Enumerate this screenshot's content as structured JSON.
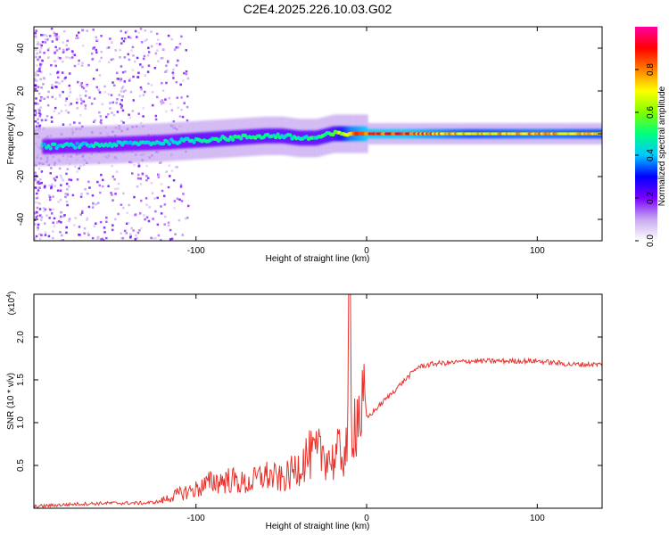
{
  "figure": {
    "title": "C2E4.2025.226.10.03.G02"
  },
  "chart_data": [
    {
      "type": "heatmap",
      "title": "C2E4.2025.226.10.03.G02",
      "xlabel": "Height of straight line (km)",
      "ylabel": "Frequency (Hz)",
      "xlim": [
        -195,
        138
      ],
      "ylim": [
        -50,
        50
      ],
      "xticks": [
        -100,
        0,
        100
      ],
      "yticks": [
        -40,
        -20,
        0,
        20,
        40
      ],
      "xtick_labels": [
        "-100",
        "0",
        "100"
      ],
      "ytick_labels": [
        "-40",
        "-20",
        "0",
        "20",
        "40"
      ],
      "grid": false,
      "colorbar": {
        "label": "Normalized spectral amplitude",
        "range": [
          0,
          1
        ],
        "ticks": [
          0.0,
          0.2,
          0.4,
          0.6,
          0.8
        ],
        "tick_labels": [
          "0.0",
          "0.2",
          "0.4",
          "0.6",
          "0.8"
        ],
        "colormap": [
          "#ffffff",
          "#c8a8f0",
          "#7a00ff",
          "#0000ff",
          "#00c8ff",
          "#00ff80",
          "#80ff00",
          "#ffff00",
          "#ff8000",
          "#ff0000",
          "#ff00a0"
        ]
      },
      "ridge": {
        "description_points_x": [
          -190,
          -150,
          -120,
          -100,
          -80,
          -60,
          -50,
          -40,
          -30,
          -20,
          -10,
          0,
          20,
          60,
          100,
          138
        ],
        "frequency": [
          -6,
          -5,
          -4,
          -3,
          -2,
          -1,
          -1,
          -2,
          -2,
          0,
          0,
          0,
          0,
          0,
          0,
          0
        ],
        "amplitude": [
          0.45,
          0.45,
          0.45,
          0.5,
          0.5,
          0.5,
          0.5,
          0.5,
          0.5,
          0.55,
          0.8,
          0.9,
          0.9,
          0.75,
          0.8,
          0.75
        ]
      }
    },
    {
      "type": "line",
      "xlabel": "Height of straight line (km)",
      "ylabel": "SNR (10 * v/v)",
      "y_multiplier": "(x10",
      "y_multiplier_exp": "4",
      "y_multiplier_close": ")",
      "xlim": [
        -195,
        138
      ],
      "ylim": [
        0,
        2.5
      ],
      "xticks": [
        -100,
        0,
        100
      ],
      "yticks": [
        0.5,
        1.0,
        1.5,
        2.0
      ],
      "xtick_labels": [
        "-100",
        "0",
        "100"
      ],
      "ytick_labels": [
        "0.5",
        "1.0",
        "1.5",
        "2.0"
      ],
      "grid": false,
      "series": [
        {
          "color": "#e8332c",
          "x": [
            -195,
            -170,
            -150,
            -130,
            -120,
            -110,
            -100,
            -90,
            -80,
            -70,
            -60,
            -50,
            -45,
            -40,
            -35,
            -30,
            -25,
            -20,
            -15,
            -12,
            -10,
            -5,
            0,
            5,
            10,
            15,
            20,
            25,
            30,
            40,
            50,
            60,
            70,
            80,
            90,
            100,
            110,
            120,
            130,
            138
          ],
          "y": [
            0.02,
            0.05,
            0.06,
            0.06,
            0.08,
            0.15,
            0.2,
            0.28,
            0.3,
            0.25,
            0.35,
            0.3,
            0.35,
            0.45,
            0.55,
            0.55,
            0.6,
            0.5,
            0.6,
            0.6,
            0.9,
            1.0,
            1.05,
            1.15,
            1.25,
            1.35,
            1.45,
            1.55,
            1.65,
            1.69,
            1.7,
            1.72,
            1.72,
            1.72,
            1.72,
            1.72,
            1.7,
            1.68,
            1.68,
            1.68
          ]
        }
      ]
    }
  ]
}
